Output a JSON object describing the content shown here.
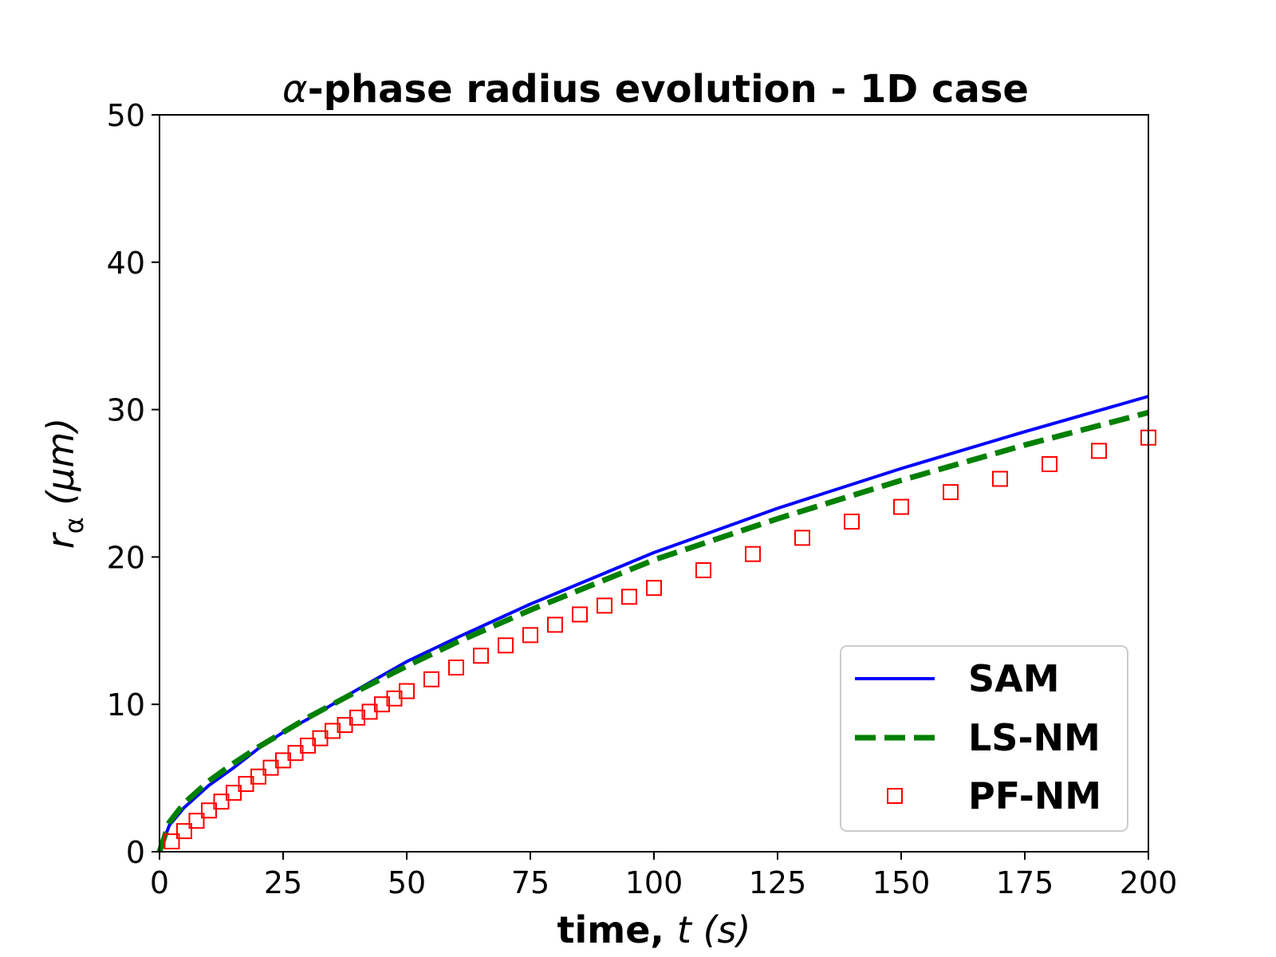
{
  "chart_data": {
    "type": "line",
    "title": "α-phase radius evolution - 1D case",
    "xlabel": "time, t (s)",
    "ylabel": "r_α (μm)",
    "xlim": [
      0,
      200
    ],
    "ylim": [
      0,
      50
    ],
    "x_ticks": [
      "0",
      "25",
      "50",
      "75",
      "100",
      "125",
      "150",
      "175",
      "200"
    ],
    "y_ticks": [
      "0",
      "10",
      "20",
      "30",
      "40",
      "50"
    ],
    "grid": false,
    "legend_position": "lower right",
    "series": [
      {
        "name": "SAM",
        "style": "solid-line",
        "color": "#0000ff",
        "x": [
          0,
          2,
          5,
          10,
          15,
          20,
          25,
          30,
          40,
          50,
          60,
          75,
          100,
          125,
          150,
          175,
          200
        ],
        "y": [
          0,
          1.8,
          3.0,
          4.5,
          5.7,
          7.0,
          8.1,
          9.0,
          11.0,
          12.9,
          14.5,
          16.8,
          20.3,
          23.3,
          26.0,
          28.5,
          30.9
        ]
      },
      {
        "name": "LS-NM",
        "style": "dashed-line",
        "color": "#008000",
        "x": [
          0,
          2,
          5,
          10,
          15,
          20,
          25,
          30,
          40,
          50,
          60,
          75,
          100,
          125,
          150,
          175,
          200
        ],
        "y": [
          0,
          2.0,
          3.3,
          4.8,
          6.0,
          7.1,
          8.1,
          9.1,
          10.9,
          12.6,
          14.2,
          16.4,
          19.8,
          22.6,
          25.2,
          27.6,
          29.8
        ]
      },
      {
        "name": "PF-NM",
        "style": "hollow-square-markers",
        "color": "#ff0000",
        "x": [
          2.5,
          5,
          7.5,
          10,
          12.5,
          15,
          17.5,
          20,
          22.5,
          25,
          27.5,
          30,
          32.5,
          35,
          37.5,
          40,
          42.5,
          45,
          47.5,
          50,
          55,
          60,
          65,
          70,
          75,
          80,
          85,
          90,
          95,
          100,
          110,
          120,
          130,
          140,
          150,
          160,
          170,
          180,
          190,
          200
        ],
        "y": [
          0.7,
          1.4,
          2.1,
          2.8,
          3.4,
          4.0,
          4.6,
          5.1,
          5.7,
          6.2,
          6.7,
          7.2,
          7.7,
          8.2,
          8.6,
          9.1,
          9.5,
          10.0,
          10.4,
          10.9,
          11.7,
          12.5,
          13.3,
          14.0,
          14.7,
          15.4,
          16.1,
          16.7,
          17.3,
          17.9,
          19.1,
          20.2,
          21.3,
          22.4,
          23.4,
          24.4,
          25.3,
          26.3,
          27.2,
          28.1
        ]
      }
    ]
  }
}
